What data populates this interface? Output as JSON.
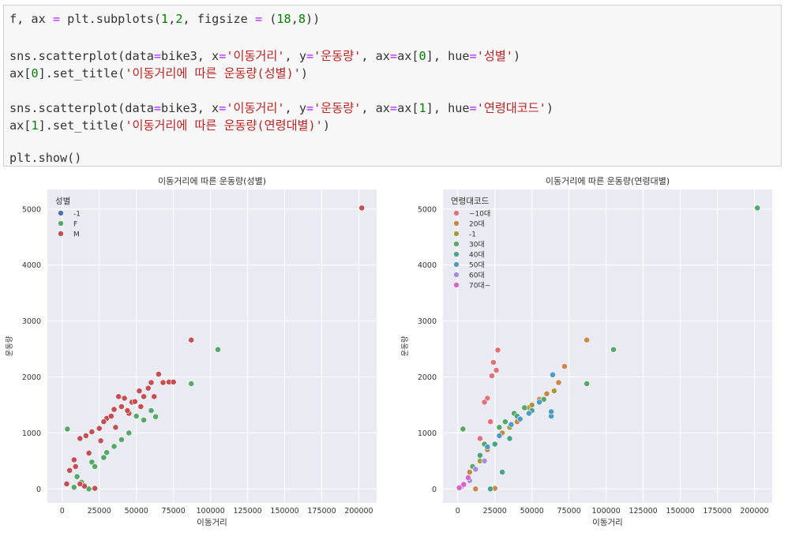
{
  "code": {
    "lines": [
      [
        {
          "t": "f, ax ",
          "c": ""
        },
        {
          "t": "=",
          "c": "eq"
        },
        {
          "t": " plt.subplots(",
          "c": ""
        },
        {
          "t": "1",
          "c": "num"
        },
        {
          "t": ",",
          "c": ""
        },
        {
          "t": "2",
          "c": "num"
        },
        {
          "t": ", figsize ",
          "c": ""
        },
        {
          "t": "=",
          "c": "eq"
        },
        {
          "t": " (",
          "c": ""
        },
        {
          "t": "18",
          "c": "num"
        },
        {
          "t": ",",
          "c": ""
        },
        {
          "t": "8",
          "c": "num"
        },
        {
          "t": "))",
          "c": ""
        }
      ],
      [],
      [
        {
          "t": "sns.scatterplot(data",
          "c": ""
        },
        {
          "t": "=",
          "c": "eq"
        },
        {
          "t": "bike3, x",
          "c": ""
        },
        {
          "t": "=",
          "c": "eq"
        },
        {
          "t": "'이동거리'",
          "c": "str"
        },
        {
          "t": ", y",
          "c": ""
        },
        {
          "t": "=",
          "c": "eq"
        },
        {
          "t": "'운동량'",
          "c": "str"
        },
        {
          "t": ", ax",
          "c": ""
        },
        {
          "t": "=",
          "c": "eq"
        },
        {
          "t": "ax[",
          "c": ""
        },
        {
          "t": "0",
          "c": "num"
        },
        {
          "t": "], hue",
          "c": ""
        },
        {
          "t": "=",
          "c": "eq"
        },
        {
          "t": "'성별'",
          "c": "str"
        },
        {
          "t": ")",
          "c": ""
        }
      ],
      [
        {
          "t": "ax[",
          "c": ""
        },
        {
          "t": "0",
          "c": "num"
        },
        {
          "t": "].set_title(",
          "c": ""
        },
        {
          "t": "'이동거리에 따른 운동량(성별)'",
          "c": "str"
        },
        {
          "t": ")",
          "c": ""
        }
      ],
      [],
      [
        {
          "t": "sns.scatterplot(data",
          "c": ""
        },
        {
          "t": "=",
          "c": "eq"
        },
        {
          "t": "bike3, x",
          "c": ""
        },
        {
          "t": "=",
          "c": "eq"
        },
        {
          "t": "'이동거리'",
          "c": "str"
        },
        {
          "t": ", y",
          "c": ""
        },
        {
          "t": "=",
          "c": "eq"
        },
        {
          "t": "'운동량'",
          "c": "str"
        },
        {
          "t": ", ax",
          "c": ""
        },
        {
          "t": "=",
          "c": "eq"
        },
        {
          "t": "ax[",
          "c": ""
        },
        {
          "t": "1",
          "c": "num"
        },
        {
          "t": "], hue",
          "c": ""
        },
        {
          "t": "=",
          "c": "eq"
        },
        {
          "t": "'연령대코드'",
          "c": "str"
        },
        {
          "t": ")",
          "c": ""
        }
      ],
      [
        {
          "t": "ax[",
          "c": ""
        },
        {
          "t": "1",
          "c": "num"
        },
        {
          "t": "].set_title(",
          "c": ""
        },
        {
          "t": "'이동거리에 따른 운동량(연령대별)'",
          "c": "str"
        },
        {
          "t": ")",
          "c": ""
        }
      ],
      [],
      [
        {
          "t": "plt.show()",
          "c": ""
        }
      ]
    ],
    "colors": {
      "eq": "#aa22ff",
      "num": "#008000",
      "str": "#ba2121"
    }
  },
  "chart_data": [
    {
      "type": "scatter",
      "title": "이동거리에 따른 운동량(성별)",
      "xlabel": "이동거리",
      "ylabel": "운동량",
      "xlim": [
        -10000,
        212000
      ],
      "ylim": [
        -250,
        5350
      ],
      "xticks": [
        0,
        25000,
        50000,
        75000,
        100000,
        125000,
        150000,
        175000,
        200000
      ],
      "yticks": [
        0,
        1000,
        2000,
        3000,
        4000,
        5000
      ],
      "grid": true,
      "legend_placement": "top-left",
      "legend_title": "성별",
      "series": [
        {
          "name": "-1",
          "color": "#4c72b0",
          "points": []
        },
        {
          "name": "F",
          "color": "#55a868",
          "points": [
            [
              3500,
              1070
            ],
            [
              87000,
              1880
            ],
            [
              105000,
              2490
            ],
            [
              50000,
              1300
            ],
            [
              55000,
              1230
            ],
            [
              63000,
              1290
            ],
            [
              45000,
              1000
            ],
            [
              18000,
              0
            ],
            [
              8000,
              30
            ],
            [
              20000,
              480
            ],
            [
              30000,
              650
            ],
            [
              35000,
              760
            ],
            [
              40000,
              880
            ],
            [
              22000,
              400
            ],
            [
              10000,
              220
            ],
            [
              28000,
              560
            ],
            [
              60000,
              1400
            ],
            [
              13000,
              120
            ]
          ]
        },
        {
          "name": "M",
          "color": "#c44e52",
          "points": [
            [
              202000,
              5020
            ],
            [
              87000,
              2660
            ],
            [
              72000,
              1910
            ],
            [
              65000,
              2050
            ],
            [
              68000,
              1900
            ],
            [
              58000,
              1800
            ],
            [
              52000,
              1750
            ],
            [
              47000,
              1550
            ],
            [
              38000,
              1650
            ],
            [
              42000,
              1620
            ],
            [
              62000,
              1650
            ],
            [
              75000,
              1910
            ],
            [
              30000,
              1260
            ],
            [
              35000,
              1420
            ],
            [
              25000,
              1080
            ],
            [
              45000,
              1350
            ],
            [
              55000,
              1650
            ],
            [
              12000,
              900
            ],
            [
              16000,
              950
            ],
            [
              20000,
              1020
            ],
            [
              8000,
              520
            ],
            [
              5000,
              330
            ],
            [
              15000,
              50
            ],
            [
              12000,
              90
            ],
            [
              22000,
              10
            ],
            [
              3000,
              90
            ],
            [
              28000,
              1200
            ],
            [
              33000,
              1300
            ],
            [
              40000,
              1470
            ],
            [
              49000,
              1560
            ],
            [
              60000,
              1900
            ],
            [
              53000,
              1470
            ],
            [
              44000,
              1400
            ],
            [
              36000,
              1100
            ],
            [
              26000,
              860
            ],
            [
              18000,
              640
            ],
            [
              9000,
              400
            ]
          ]
        }
      ]
    },
    {
      "type": "scatter",
      "title": "이동거리에 따른 운동량(연령대별)",
      "xlabel": "이동거리",
      "ylabel": "운동량",
      "xlim": [
        -10000,
        212000
      ],
      "ylim": [
        -250,
        5350
      ],
      "xticks": [
        0,
        25000,
        50000,
        75000,
        100000,
        125000,
        150000,
        175000,
        200000
      ],
      "yticks": [
        0,
        1000,
        2000,
        3000,
        4000,
        5000
      ],
      "grid": true,
      "legend_placement": "top-left",
      "legend_title": "연령대코드",
      "series": [
        {
          "name": "~10대",
          "color": "#e1727b",
          "points": [
            [
              27000,
              2480
            ],
            [
              24000,
              2260
            ],
            [
              26000,
              2120
            ],
            [
              23000,
              2020
            ],
            [
              20000,
              1620
            ],
            [
              18000,
              1550
            ],
            [
              22000,
              1200
            ],
            [
              15000,
              900
            ]
          ]
        },
        {
          "name": "20대",
          "color": "#c8884a",
          "points": [
            [
              87000,
              2660
            ],
            [
              72000,
              2190
            ],
            [
              68000,
              1900
            ],
            [
              60000,
              1700
            ],
            [
              55000,
              1600
            ],
            [
              48000,
              1450
            ],
            [
              40000,
              1200
            ],
            [
              30000,
              1000
            ],
            [
              20000,
              700
            ],
            [
              12000,
              0
            ],
            [
              25000,
              10
            ],
            [
              8000,
              300
            ]
          ]
        },
        {
          "name": "-1",
          "color": "#a59a3c",
          "points": [
            [
              65000,
              1750
            ],
            [
              50000,
              1500
            ],
            [
              35000,
              1100
            ],
            [
              15000,
              500
            ]
          ]
        },
        {
          "name": "30대",
          "color": "#55a868",
          "points": [
            [
              202000,
              5020
            ],
            [
              105000,
              2490
            ],
            [
              87000,
              1880
            ],
            [
              3500,
              1070
            ],
            [
              45000,
              1450
            ],
            [
              38000,
              1350
            ],
            [
              28000,
              1100
            ],
            [
              18000,
              800
            ],
            [
              10000,
              400
            ],
            [
              58000,
              1600
            ],
            [
              32000,
              1200
            ]
          ]
        },
        {
          "name": "40대",
          "color": "#4aa388",
          "points": [
            [
              30000,
              300
            ],
            [
              22000,
              0
            ],
            [
              40000,
              1300
            ],
            [
              50000,
              1400
            ],
            [
              35000,
              900
            ],
            [
              25000,
              800
            ],
            [
              15000,
              600
            ]
          ]
        },
        {
          "name": "50대",
          "color": "#4c9bc5",
          "points": [
            [
              64000,
              2040
            ],
            [
              63000,
              1300
            ],
            [
              63000,
              1380
            ],
            [
              42000,
              1250
            ],
            [
              36000,
              1150
            ],
            [
              28000,
              950
            ],
            [
              20000,
              750
            ],
            [
              55000,
              1550
            ],
            [
              48000,
              1350
            ]
          ]
        },
        {
          "name": "60대",
          "color": "#a18ee0",
          "points": [
            [
              3000,
              50
            ],
            [
              8000,
              150
            ],
            [
              12000,
              350
            ],
            [
              18000,
              500
            ]
          ]
        },
        {
          "name": "70대~",
          "color": "#d664c9",
          "points": [
            [
              1000,
              20
            ],
            [
              4000,
              80
            ],
            [
              7000,
              200
            ]
          ]
        }
      ]
    }
  ]
}
